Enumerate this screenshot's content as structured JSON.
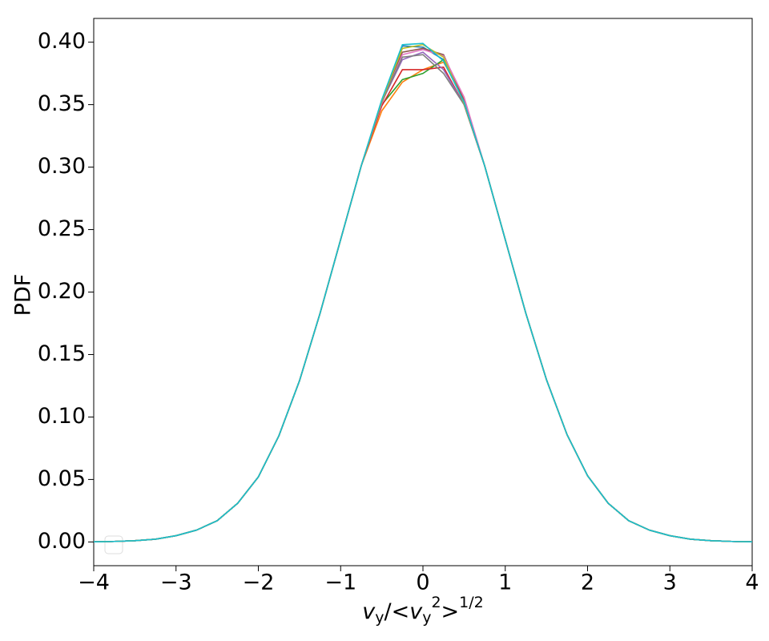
{
  "chart_data": {
    "type": "line",
    "xlabel": "v_y/<v_y^2>^{1/2}",
    "ylabel": "PDF",
    "xlim": [
      -4,
      4
    ],
    "ylim": [
      -0.019,
      0.419
    ],
    "xticks": [
      {
        "value": -4,
        "label": "−4"
      },
      {
        "value": -3,
        "label": "−3"
      },
      {
        "value": -2,
        "label": "−2"
      },
      {
        "value": -1,
        "label": "−1"
      },
      0,
      1,
      2,
      3,
      4
    ],
    "yticks": [
      {
        "value": 0,
        "label": "0.00"
      },
      {
        "value": 0.05,
        "label": "0.05"
      },
      {
        "value": 0.1,
        "label": "0.10"
      },
      {
        "value": 0.15,
        "label": "0.15"
      },
      {
        "value": 0.2,
        "label": "0.20"
      },
      {
        "value": 0.25,
        "label": "0.25"
      },
      {
        "value": 0.3,
        "label": "0.30"
      },
      {
        "value": 0.35,
        "label": "0.35"
      },
      {
        "value": 0.4,
        "label": "0.40"
      }
    ],
    "x": [
      -4,
      -3.75,
      -3.5,
      -3.25,
      -3,
      -2.75,
      -2.5,
      -2.25,
      -2,
      -1.75,
      -1.5,
      -1.25,
      -1,
      -0.75,
      -0.5,
      -0.25,
      0,
      0.25,
      0.5,
      0.75,
      1,
      1.25,
      1.5,
      1.75,
      2,
      2.25,
      2.5,
      2.75,
      3,
      3.25,
      3.5,
      3.75,
      4
    ],
    "series": [
      {
        "color": "#1f77b4",
        "values": [
          0.0001,
          0.0004,
          0.001,
          0.0022,
          0.005,
          0.0095,
          0.017,
          0.031,
          0.052,
          0.085,
          0.129,
          0.183,
          0.242,
          0.301,
          0.352,
          0.397,
          0.396,
          0.386,
          0.352,
          0.301,
          0.242,
          0.183,
          0.13,
          0.086,
          0.053,
          0.031,
          0.017,
          0.0095,
          0.005,
          0.0022,
          0.001,
          0.0004,
          0.0001
        ]
      },
      {
        "color": "#ff7f0e",
        "values": [
          0.0001,
          0.0004,
          0.001,
          0.0022,
          0.005,
          0.0095,
          0.017,
          0.031,
          0.052,
          0.085,
          0.129,
          0.183,
          0.242,
          0.301,
          0.345,
          0.368,
          0.378,
          0.384,
          0.355,
          0.301,
          0.242,
          0.183,
          0.13,
          0.086,
          0.053,
          0.031,
          0.017,
          0.0095,
          0.005,
          0.0022,
          0.001,
          0.0004,
          0.0001
        ]
      },
      {
        "color": "#2ca02c",
        "values": [
          0.0001,
          0.0004,
          0.001,
          0.0022,
          0.005,
          0.0095,
          0.017,
          0.031,
          0.052,
          0.085,
          0.129,
          0.183,
          0.242,
          0.301,
          0.35,
          0.37,
          0.375,
          0.386,
          0.353,
          0.301,
          0.242,
          0.183,
          0.13,
          0.086,
          0.053,
          0.031,
          0.017,
          0.0095,
          0.005,
          0.0022,
          0.001,
          0.0004,
          0.0001
        ]
      },
      {
        "color": "#d62728",
        "values": [
          0.0001,
          0.0004,
          0.001,
          0.0022,
          0.005,
          0.0095,
          0.017,
          0.031,
          0.052,
          0.085,
          0.129,
          0.183,
          0.242,
          0.301,
          0.349,
          0.378,
          0.378,
          0.38,
          0.35,
          0.301,
          0.242,
          0.183,
          0.13,
          0.086,
          0.053,
          0.031,
          0.017,
          0.0095,
          0.005,
          0.0022,
          0.001,
          0.0004,
          0.0001
        ]
      },
      {
        "color": "#9467bd",
        "values": [
          0.0001,
          0.0004,
          0.001,
          0.0022,
          0.005,
          0.0095,
          0.017,
          0.031,
          0.052,
          0.085,
          0.129,
          0.183,
          0.242,
          0.301,
          0.352,
          0.386,
          0.392,
          0.378,
          0.35,
          0.301,
          0.242,
          0.183,
          0.13,
          0.086,
          0.053,
          0.031,
          0.017,
          0.0095,
          0.005,
          0.0022,
          0.001,
          0.0004,
          0.0001
        ]
      },
      {
        "color": "#8c564b",
        "values": [
          0.0001,
          0.0004,
          0.001,
          0.0022,
          0.005,
          0.0095,
          0.017,
          0.031,
          0.052,
          0.085,
          0.129,
          0.183,
          0.242,
          0.301,
          0.353,
          0.392,
          0.395,
          0.39,
          0.353,
          0.301,
          0.242,
          0.183,
          0.13,
          0.086,
          0.053,
          0.031,
          0.017,
          0.0095,
          0.005,
          0.0022,
          0.001,
          0.0004,
          0.0001
        ]
      },
      {
        "color": "#e377c2",
        "values": [
          0.0001,
          0.0004,
          0.001,
          0.0022,
          0.005,
          0.0095,
          0.017,
          0.031,
          0.052,
          0.085,
          0.129,
          0.183,
          0.242,
          0.301,
          0.351,
          0.39,
          0.394,
          0.389,
          0.356,
          0.301,
          0.242,
          0.183,
          0.13,
          0.086,
          0.053,
          0.031,
          0.017,
          0.0095,
          0.005,
          0.0022,
          0.001,
          0.0004,
          0.0001
        ]
      },
      {
        "color": "#7f7f7f",
        "values": [
          0.0001,
          0.0004,
          0.001,
          0.0022,
          0.005,
          0.0095,
          0.017,
          0.031,
          0.052,
          0.085,
          0.129,
          0.183,
          0.242,
          0.301,
          0.352,
          0.388,
          0.39,
          0.375,
          0.35,
          0.301,
          0.242,
          0.183,
          0.13,
          0.086,
          0.053,
          0.031,
          0.017,
          0.0095,
          0.005,
          0.0022,
          0.001,
          0.0004,
          0.0001
        ]
      },
      {
        "color": "#bcbd22",
        "values": [
          0.0001,
          0.0004,
          0.001,
          0.0022,
          0.005,
          0.0095,
          0.017,
          0.031,
          0.052,
          0.085,
          0.129,
          0.183,
          0.242,
          0.301,
          0.353,
          0.395,
          0.398,
          0.388,
          0.351,
          0.301,
          0.242,
          0.183,
          0.13,
          0.086,
          0.053,
          0.031,
          0.017,
          0.0095,
          0.005,
          0.0022,
          0.001,
          0.0004,
          0.0001
        ]
      },
      {
        "color": "#17becf",
        "values": [
          0.0001,
          0.0004,
          0.001,
          0.0022,
          0.005,
          0.0095,
          0.017,
          0.031,
          0.052,
          0.085,
          0.129,
          0.183,
          0.242,
          0.301,
          0.354,
          0.398,
          0.399,
          0.385,
          0.352,
          0.301,
          0.242,
          0.183,
          0.13,
          0.086,
          0.053,
          0.031,
          0.017,
          0.0095,
          0.005,
          0.0022,
          0.001,
          0.0004,
          0.0001
        ]
      }
    ]
  }
}
